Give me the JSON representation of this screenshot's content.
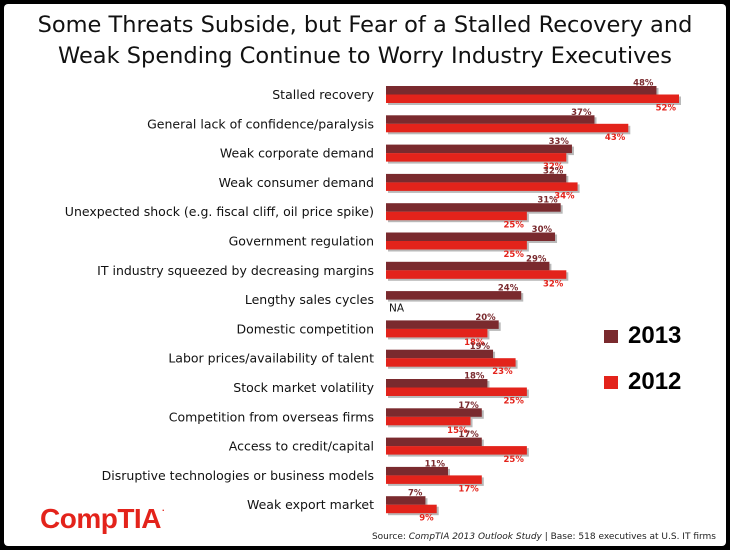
{
  "title_line1": "Some Threats Subside, but Fear of a Stalled Recovery and",
  "title_line2": "Weak Spending Continue to Worry Industry Executives",
  "logo_text": "CompTIA",
  "logo_tm": ".",
  "source_prefix": "Source: ",
  "source_study": "CompTIA 2013 Outlook Study",
  "source_suffix": " | Base: 518 executives at U.S. IT firms",
  "colors": {
    "series2013": "#7a2a2e",
    "series2012": "#e3231b"
  },
  "chart_data": {
    "type": "bar",
    "orientation": "horizontal",
    "title": "Some Threats Subside, but Fear of a Stalled Recovery and Weak Spending Continue to Worry Industry Executives",
    "categories": [
      "Stalled recovery",
      "General lack of confidence/paralysis",
      "Weak corporate demand",
      "Weak consumer demand",
      "Unexpected shock (e.g. fiscal cliff, oil price spike)",
      "Government regulation",
      "IT industry squeezed by decreasing margins",
      "Lengthy sales cycles",
      "Domestic competition",
      "Labor prices/availability of talent",
      "Stock market volatility",
      "Competition from overseas firms",
      "Access to credit/capital",
      "Disruptive technologies or business models",
      "Weak export market"
    ],
    "series": [
      {
        "name": "2013",
        "values": [
          48,
          37,
          33,
          32,
          31,
          30,
          29,
          24,
          20,
          19,
          18,
          17,
          17,
          11,
          7
        ]
      },
      {
        "name": "2012",
        "values": [
          52,
          43,
          32,
          34,
          25,
          25,
          32,
          null,
          18,
          23,
          25,
          15,
          25,
          17,
          9
        ]
      }
    ],
    "missing_label": "NA",
    "value_suffix": "%",
    "xlim": [
      0,
      52
    ],
    "legend_position": "right"
  }
}
